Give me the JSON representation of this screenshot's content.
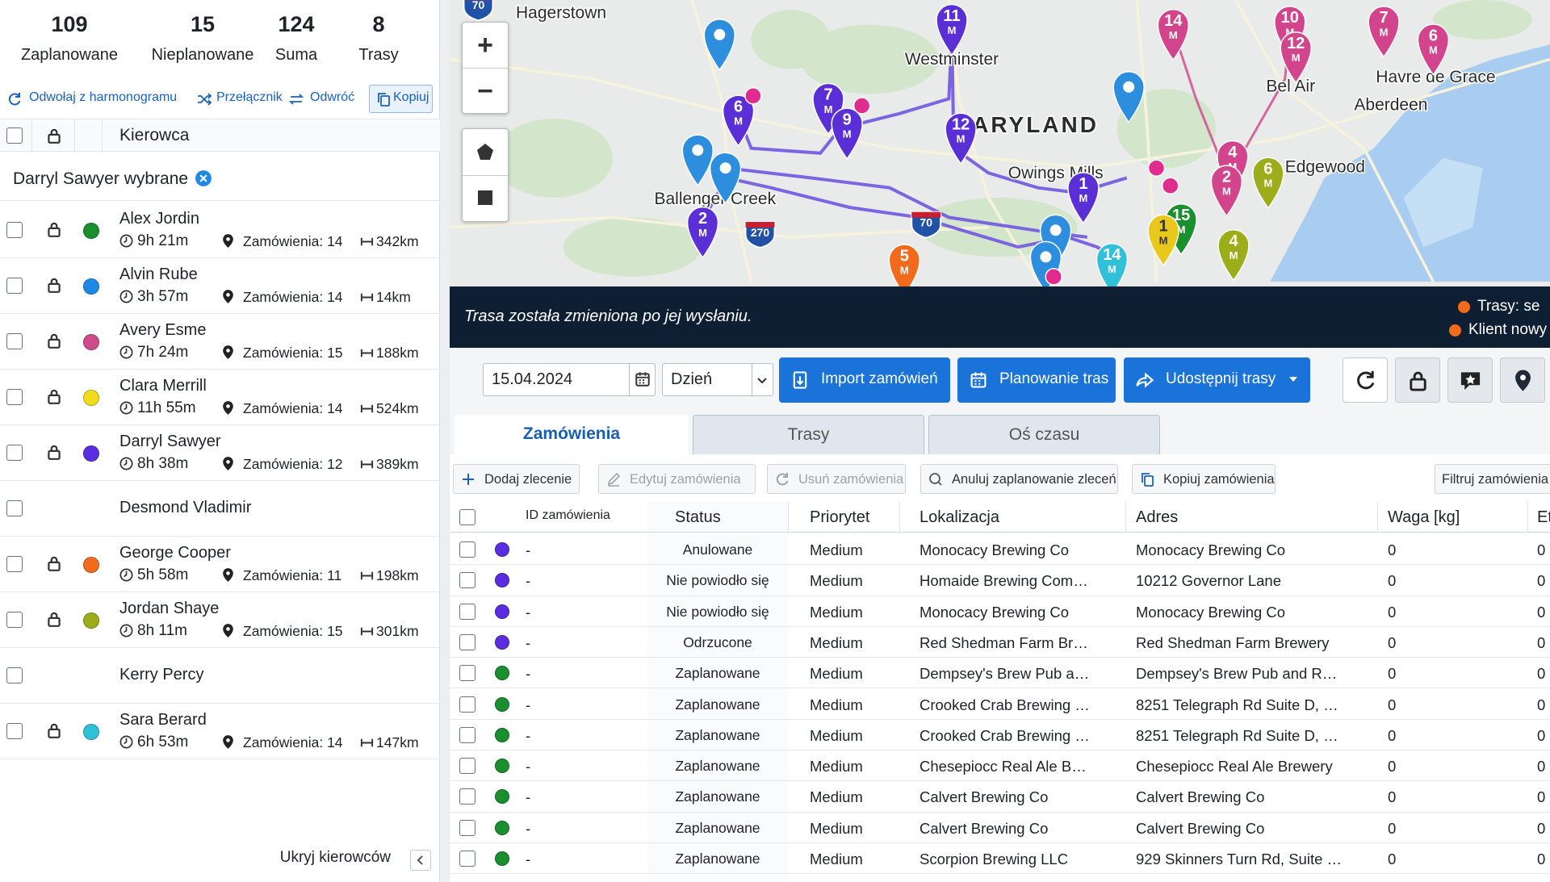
{
  "stats": [
    {
      "value": 109,
      "label": "Zaplanowane"
    },
    {
      "value": 15,
      "label": "Nieplanowane"
    },
    {
      "value": 124,
      "label": "Suma"
    },
    {
      "value": 8,
      "label": "Trasy"
    }
  ],
  "left_actions": [
    "Odwołaj z harmonogramu",
    "Przełącznik",
    "Odwróć",
    "Kopiuj"
  ],
  "driver_header": "Kierowca",
  "selected": "Darryl Sawyer wybrane",
  "drivers": [
    {
      "name": "Alex Jordin",
      "color": "#1a8f2e",
      "time": "9h 21m",
      "orders": "Zamówienia: 14",
      "distance": "342km"
    },
    {
      "name": "Alvin Rube",
      "color": "#1e88e5",
      "time": "3h 57m",
      "orders": "Zamówienia: 14",
      "distance": "14km"
    },
    {
      "name": "Avery Esme",
      "color": "#cf4a8a",
      "time": "7h 24m",
      "orders": "Zamówienia: 15",
      "distance": "188km"
    },
    {
      "name": "Clara Merrill",
      "color": "#f0dd1e",
      "time": "11h 55m",
      "orders": "Zamówienia: 14",
      "distance": "524km"
    },
    {
      "name": "Darryl Sawyer",
      "color": "#5a2ee0",
      "time": "8h 38m",
      "orders": "Zamówienia: 12",
      "distance": "389km"
    },
    {
      "name": "Desmond Vladimir"
    },
    {
      "name": "George Cooper",
      "color": "#f26b1d",
      "time": "5h 58m",
      "orders": "Zamówienia: 11",
      "distance": "198km"
    },
    {
      "name": "Jordan Shaye",
      "color": "#9bad1a",
      "time": "8h 11m",
      "orders": "Zamówienia: 15",
      "distance": "301km"
    },
    {
      "name": "Kerry Percy"
    },
    {
      "name": "Sara Berard",
      "color": "#30c0d8",
      "time": "6h 53m",
      "orders": "Zamówienia: 14",
      "distance": "147km"
    }
  ],
  "hide_drivers": "Ukryj kierowców",
  "map": {
    "zoom": [
      "+",
      "−"
    ],
    "places": [
      "Hagerstown",
      "Westminster",
      "MARYLAND",
      "Owings Mills",
      "Ballenger Creek",
      "Bel Air",
      "Havre de Grace",
      "Aberdeen",
      "Edgewood"
    ],
    "shields": [
      "70",
      "270",
      "70"
    ],
    "marker_suffix": "M",
    "markers": [
      {
        "label": "11",
        "color": "#5b2fd6"
      },
      {
        "label": "6",
        "color": "#5b2fd6"
      },
      {
        "label": "7",
        "color": "#5b2fd6"
      },
      {
        "label": "9",
        "color": "#5b2fd6"
      },
      {
        "label": "12",
        "color": "#5b2fd6"
      },
      {
        "label": "2",
        "color": "#5b2fd6"
      },
      {
        "label": "1",
        "color": "#5b2fd6"
      },
      {
        "label": "14",
        "color": "#d2458c"
      },
      {
        "label": "10",
        "color": "#d2458c"
      },
      {
        "label": "12",
        "color": "#d2458c"
      },
      {
        "label": "7",
        "color": "#d2458c"
      },
      {
        "label": "6",
        "color": "#d2458c"
      },
      {
        "label": "4",
        "color": "#d2458c"
      },
      {
        "label": "2",
        "color": "#d2458c"
      },
      {
        "label": "6",
        "color": "#9bad1a"
      },
      {
        "label": "4",
        "color": "#9bad1a"
      },
      {
        "label": "15",
        "color": "#1a8f2e"
      },
      {
        "label": "1",
        "color": "#e8c81a"
      },
      {
        "label": "14",
        "color": "#30c0d8"
      },
      {
        "label": "5",
        "color": "#f26b1d"
      }
    ]
  },
  "banner": {
    "message": "Trasa została zmieniona po jej wysłaniu.",
    "legend": [
      "Trasy: se",
      "Klient nowy"
    ]
  },
  "toolbar": {
    "date": "15.04.2024",
    "period": "Dzień",
    "buttons": [
      "Import zamówień",
      "Planowanie tras",
      "Udostępnij trasy"
    ]
  },
  "tabs": [
    "Zamówienia",
    "Trasy",
    "Oś czasu"
  ],
  "actions": [
    "Dodaj zlecenie",
    "Edytuj zamówienia",
    "Usuń zamówienia",
    "Anuluj zaplanowanie zleceń",
    "Kopiuj zamówienia",
    "Filtruj zamówienia"
  ],
  "table": {
    "columns": [
      "ID zamówienia",
      "Status",
      "Priorytet",
      "Lokalizacja",
      "Adres",
      "Waga [kg]",
      "Et"
    ],
    "rows": [
      {
        "color": "#5a2ee0",
        "id": "-",
        "status": "Anulowane",
        "priority": "Medium",
        "location": "Monocacy Brewing Co",
        "address": "Monocacy Brewing Co",
        "weight": 0,
        "extra": 0
      },
      {
        "color": "#5a2ee0",
        "id": "-",
        "status": "Nie powiodło się",
        "priority": "Medium",
        "location": "Homaide Brewing Com…",
        "address": "10212 Governor Lane",
        "weight": 0,
        "extra": 0
      },
      {
        "color": "#5a2ee0",
        "id": "-",
        "status": "Nie powiodło się",
        "priority": "Medium",
        "location": "Monocacy Brewing Co",
        "address": "Monocacy Brewing Co",
        "weight": 0,
        "extra": 0
      },
      {
        "color": "#5a2ee0",
        "id": "-",
        "status": "Odrzucone",
        "priority": "Medium",
        "location": "Red Shedman Farm Br…",
        "address": "Red Shedman Farm Brewery",
        "weight": 0,
        "extra": 0
      },
      {
        "color": "#1a8f2e",
        "id": "-",
        "status": "Zaplanowane",
        "priority": "Medium",
        "location": "Dempsey's Brew Pub a…",
        "address": "Dempsey's Brew Pub and R…",
        "weight": 0,
        "extra": 0
      },
      {
        "color": "#1a8f2e",
        "id": "-",
        "status": "Zaplanowane",
        "priority": "Medium",
        "location": "Crooked Crab Brewing …",
        "address": "8251 Telegraph Rd Suite D, …",
        "weight": 0,
        "extra": 0
      },
      {
        "color": "#1a8f2e",
        "id": "-",
        "status": "Zaplanowane",
        "priority": "Medium",
        "location": "Crooked Crab Brewing …",
        "address": "8251 Telegraph Rd Suite D, …",
        "weight": 0,
        "extra": 0
      },
      {
        "color": "#1a8f2e",
        "id": "-",
        "status": "Zaplanowane",
        "priority": "Medium",
        "location": "Chesepiocc Real Ale B…",
        "address": "Chesepiocc Real Ale Brewery",
        "weight": 0,
        "extra": 0
      },
      {
        "color": "#1a8f2e",
        "id": "-",
        "status": "Zaplanowane",
        "priority": "Medium",
        "location": "Calvert Brewing Co",
        "address": "Calvert Brewing Co",
        "weight": 0,
        "extra": 0
      },
      {
        "color": "#1a8f2e",
        "id": "-",
        "status": "Zaplanowane",
        "priority": "Medium",
        "location": "Calvert Brewing Co",
        "address": "Calvert Brewing Co",
        "weight": 0,
        "extra": 0
      },
      {
        "color": "#1a8f2e",
        "id": "-",
        "status": "Zaplanowane",
        "priority": "Medium",
        "location": "Scorpion Brewing LLC",
        "address": "929 Skinners Turn Rd, Suite …",
        "weight": 0,
        "extra": 0
      }
    ]
  }
}
